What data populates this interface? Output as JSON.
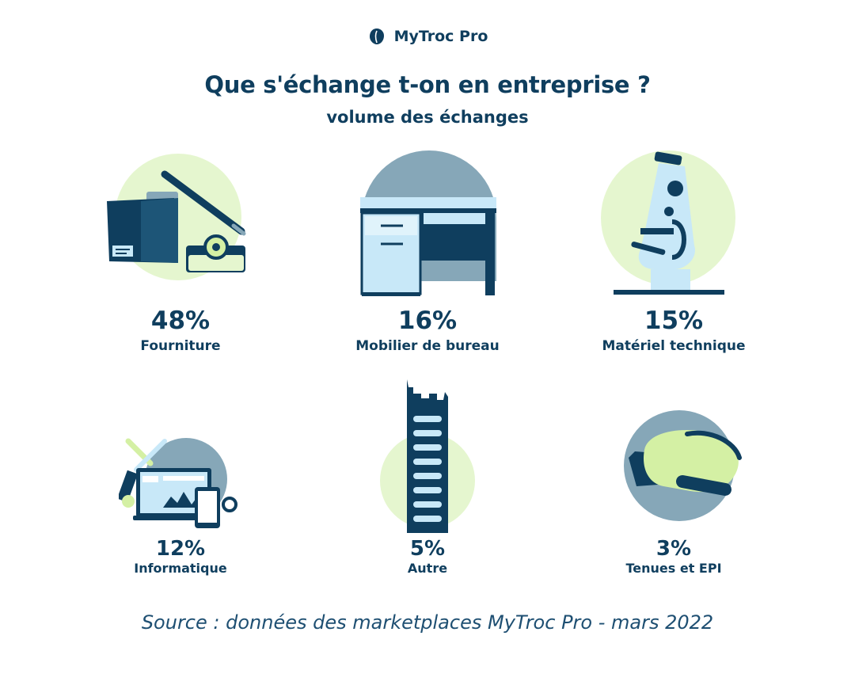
{
  "brand": {
    "name": "MyTroc Pro",
    "logo_icon": "leaf-icon"
  },
  "title": "Que s'échange t-on en entreprise ?",
  "subtitle": "volume des échanges",
  "chart_data": {
    "type": "table",
    "title": "Que s'échange t-on en entreprise ?",
    "subtitle": "volume des échanges",
    "categories": [
      "Fourniture",
      "Mobilier de bureau",
      "Matériel technique",
      "Informatique",
      "Autre",
      "Tenues et EPI"
    ],
    "values": [
      48,
      16,
      15,
      12,
      5,
      3
    ],
    "value_labels": [
      "48%",
      "16%",
      "15%",
      "12%",
      "5%",
      "3%"
    ],
    "icons": [
      "office-supplies-icon",
      "desk-icon",
      "microscope-icon",
      "computer-devices-icon",
      "building-icon",
      "helmet-icon"
    ],
    "colors": {
      "navy": "#0f3e5e",
      "slate": "#86a7b8",
      "lime": "#e5f6cf",
      "light_blue": "#c8e8f8",
      "green": "#d4f0a4"
    }
  },
  "source": "Source : données des marketplaces MyTroc Pro - mars 2022"
}
